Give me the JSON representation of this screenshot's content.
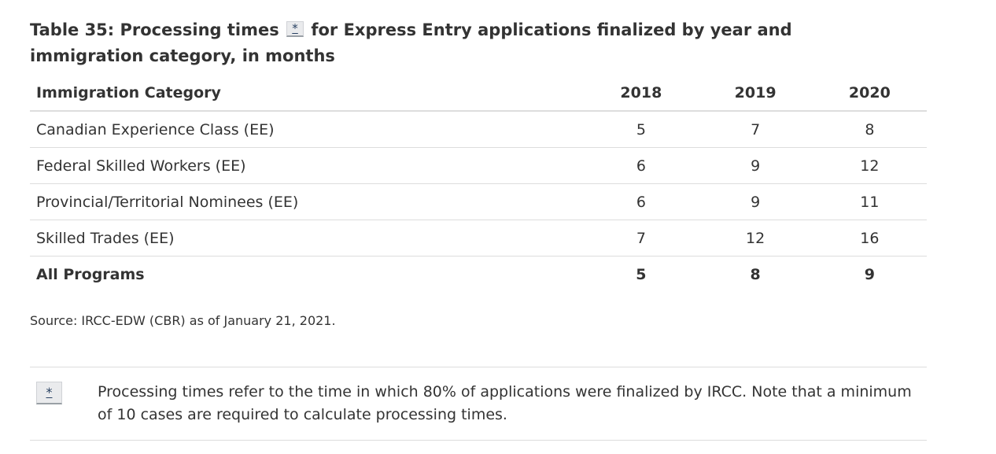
{
  "table": {
    "caption_before": "Table 35: Processing times",
    "caption_marker": "*",
    "caption_after": "for Express Entry applications finalized by year and immigration category, in months",
    "headers": [
      "Immigration Category",
      "2018",
      "2019",
      "2020"
    ],
    "rows": [
      [
        "Canadian Experience Class (EE)",
        "5",
        "7",
        "8"
      ],
      [
        "Federal Skilled Workers (EE)",
        "6",
        "9",
        "12"
      ],
      [
        "Provincial/Territorial Nominees (EE)",
        "6",
        "9",
        "11"
      ],
      [
        "Skilled Trades (EE)",
        "7",
        "12",
        "16"
      ]
    ],
    "total_row": [
      "All Programs",
      "5",
      "8",
      "9"
    ]
  },
  "source": "Source: IRCC-EDW (CBR) as of January 21, 2021.",
  "footnote": {
    "marker": "*",
    "text": "Processing times refer to the time in which 80% of applications were finalized by IRCC. Note that a minimum of 10 cases are required to calculate processing times."
  },
  "colors": {
    "text": "#333333",
    "link": "#284162",
    "rule": "#dddddd",
    "footnote_bg": "#eaebed"
  }
}
